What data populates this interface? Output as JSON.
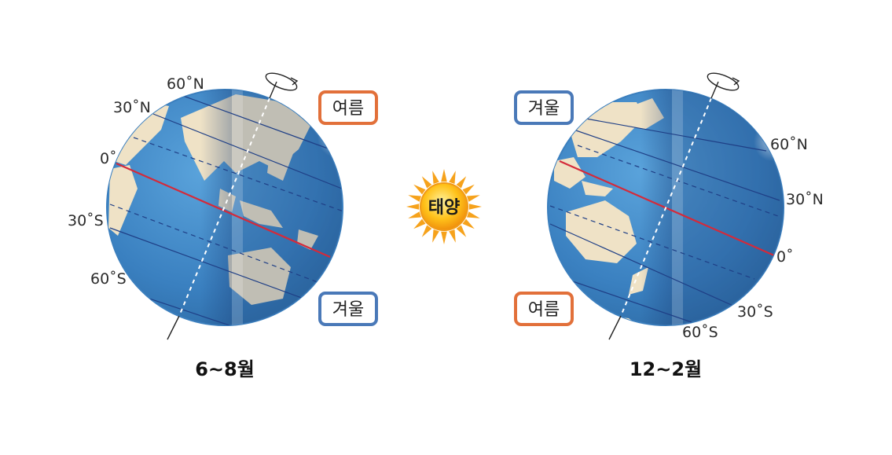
{
  "colors": {
    "summer": "#e2703a",
    "winter": "#4a79b8",
    "equator": "#d42a3a",
    "ocean": "#3e86c4",
    "land": "#efe2c6"
  },
  "sun": {
    "label": "태양"
  },
  "left_globe": {
    "caption": "6~8월",
    "season_top": "여름",
    "season_bottom": "겨울",
    "lat_60n": "60˚N",
    "lat_30n": "30˚N",
    "lat_0": "0˚",
    "lat_30s": "30˚S",
    "lat_60s": "60˚S"
  },
  "right_globe": {
    "caption": "12~2월",
    "season_top": "겨울",
    "season_bottom": "여름",
    "lat_60n": "60˚N",
    "lat_30n": "30˚N",
    "lat_0": "0˚",
    "lat_30s": "30˚S",
    "lat_60s": "60˚S"
  }
}
